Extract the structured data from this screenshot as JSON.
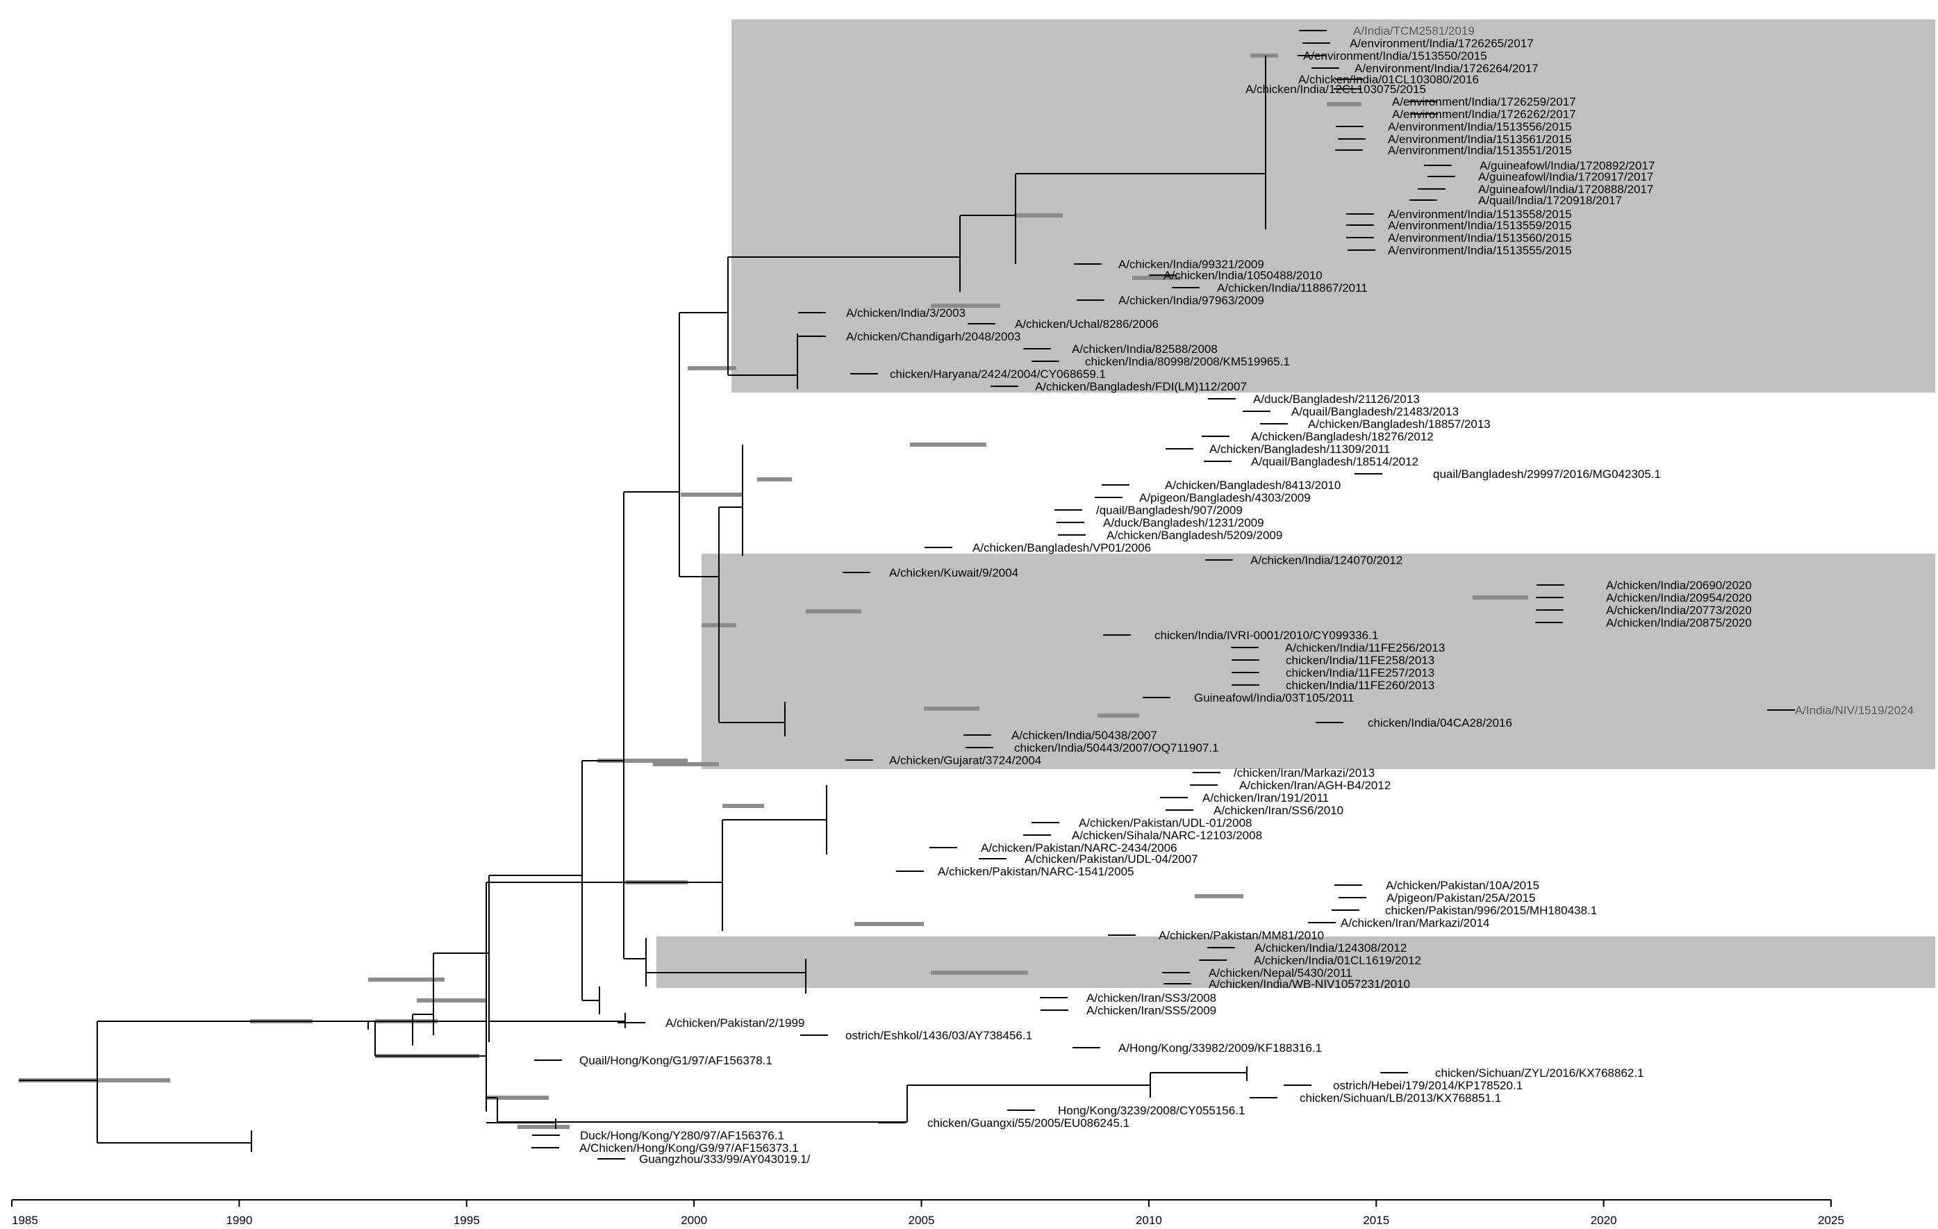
{
  "figure": {
    "type": "phylogenetic_tree",
    "axis": {
      "min_year": 1985,
      "max_year": 2025,
      "ticks": [
        "1985",
        "1990",
        "1995",
        "2000",
        "2005",
        "2010",
        "2015",
        "2020",
        "2025"
      ]
    },
    "highlight_clades": 3
  },
  "taxa": [
    "A/India/TCM2581/2019",
    "A/environment/India/1726265/2017",
    "A/environment/India/1513550/2015",
    "A/environment/India/1726264/2017",
    "A/chicken/India/01CL103080/2016",
    "A/chicken/India/12CL103075/2015",
    "A/environment/India/1726259/2017",
    "A/environment/India/1726262/2017",
    "A/environment/India/1513556/2015",
    "A/environment/India/1513561/2015",
    "A/environment/India/1513551/2015",
    "A/guineafowl/India/1720892/2017",
    "A/guineafowl/India/1720917/2017",
    "A/guineafowl/India/1720888/2017",
    "A/quail/India/1720918/2017",
    "A/environment/India/1513558/2015",
    "A/environment/India/1513559/2015",
    "A/environment/India/1513560/2015",
    "A/environment/India/1513555/2015",
    "A/chicken/India/99321/2009",
    "A/chicken/India/1050488/2010",
    "A/chicken/India/118867/2011",
    "A/chicken/India/97963/2009",
    "A/chicken/India/3/2003",
    "A/chicken/Uchal/8286/2006",
    "A/chicken/Chandigarh/2048/2003",
    "A/chicken/India/82588/2008",
    "chicken/India/80998/2008/KM519965.1",
    "chicken/Haryana/2424/2004/CY068659.1",
    "A/chicken/Bangladesh/FDI(LM)112/2007",
    "A/duck/Bangladesh/21126/2013",
    "A/quail/Bangladesh/21483/2013",
    "A/chicken/Bangladesh/18857/2013",
    "A/chicken/Bangladesh/18276/2012",
    "A/chicken/Bangladesh/11309/2011",
    "A/quail/Bangladesh/18514/2012",
    "quail/Bangladesh/29997/2016/MG042305.1",
    "A/chicken/Bangladesh/8413/2010",
    "A/pigeon/Bangladesh/4303/2009",
    "/quail/Bangladesh/907/2009",
    "A/duck/Bangladesh/1231/2009",
    "A/chicken/Bangladesh/5209/2009",
    "A/chicken/Bangladesh/VP01/2006",
    "A/chicken/India/124070/2012",
    "A/chicken/Kuwait/9/2004",
    "A/chicken/India/20690/2020",
    "A/chicken/India/20954/2020",
    "A/chicken/India/20773/2020",
    "A/chicken/India/20875/2020",
    "chicken/India/IVRI-0001/2010/CY099336.1",
    "A/chicken/India/11FE256/2013",
    "chicken/India/11FE258/2013",
    "chicken/India/11FE257/2013",
    "chicken/India/11FE260/2013",
    "Guineafowl/India/03T105/2011",
    "A/India/NIV/1519/2024",
    "chicken/India/04CA28/2016",
    "A/chicken/India/50438/2007",
    "chicken/India/50443/2007/OQ711907.1",
    "A/chicken/Gujarat/3724/2004",
    "/chicken/Iran/Markazi/2013",
    "A/chicken/Iran/AGH-B4/2012",
    "A/chicken/Iran/191/2011",
    "A/chicken/Iran/SS6/2010",
    "A/chicken/Pakistan/UDL-01/2008",
    "A/chicken/Sihala/NARC-12103/2008",
    "A/chicken/Pakistan/NARC-2434/2006",
    "A/chicken/Pakistan/UDL-04/2007",
    "A/chicken/Pakistan/NARC-1541/2005",
    "A/chicken/Pakistan/10A/2015",
    "A/pigeon/Pakistan/25A/2015",
    "chicken/Pakistan/996/2015/MH180438.1",
    "A/chicken/Iran/Markazi/2014",
    "A/chicken/Pakistan/MM81/2010",
    "A/chicken/India/124308/2012",
    "A/chicken/India/01CL1619/2012",
    "A/chicken/Nepal/5430/2011",
    "A/chicken/India/WB-NIV1057231/2010",
    "A/chicken/Iran/SS3/2008",
    "A/chicken/Iran/SS5/2009",
    "A/chicken/Pakistan/2/1999",
    "ostrich/Eshkol/1436/03/AY738456.1",
    "A/Hong/Kong/33982/2009/KF188316.1",
    "Quail/Hong/Kong/G1/97/AF156378.1",
    "chicken/Sichuan/ZYL/2016/KX768862.1",
    "ostrich/Hebei/179/2014/KP178520.1",
    "chicken/Sichuan/LB/2013/KX768851.1",
    "Hong/Kong/3239/2008/CY055156.1",
    "chicken/Guangxi/55/2005/EU086245.1",
    "Duck/Hong/Kong/Y280/97/AF156376.1",
    "A/Chicken/Hong/Kong/G9/97/AF156373.1",
    "Guangzhou/333/99/AY043019.1/"
  ]
}
